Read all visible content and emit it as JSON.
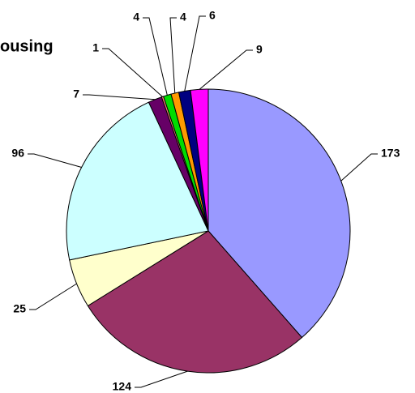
{
  "chart_data": {
    "type": "pie",
    "title": "ousing",
    "categories": [
      null,
      null,
      null,
      null,
      null,
      null,
      null,
      null,
      null,
      null
    ],
    "values": [
      173,
      124,
      25,
      96,
      7,
      1,
      4,
      4,
      6,
      9
    ],
    "colors": [
      "#9999ff",
      "#993366",
      "#ffffcc",
      "#ccffff",
      "#660066",
      "#ff8080",
      "#00dd00",
      "#ff9900",
      "#000080",
      "#ff00ff"
    ]
  }
}
